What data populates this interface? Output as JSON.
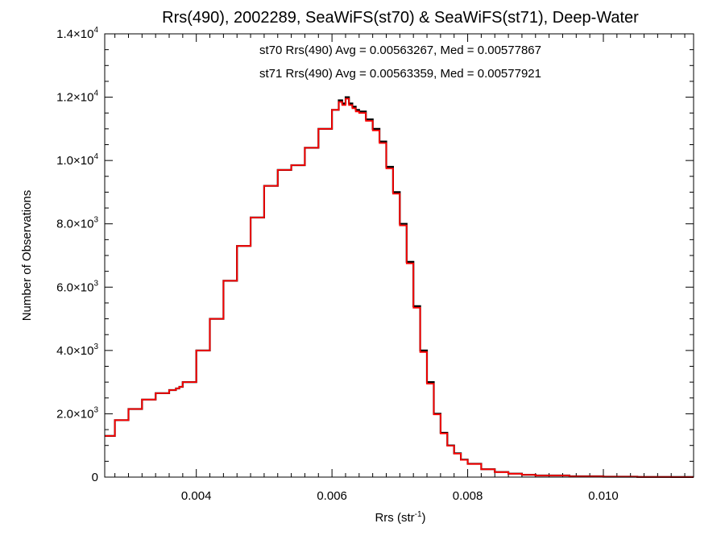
{
  "chart_data": {
    "type": "histogram-step",
    "title": "Rrs(490), 2002289, SeaWiFS(st70) & SeaWiFS(st71), Deep-Water",
    "xlabel": {
      "base": "Rrs (str",
      "sup": "-1",
      "tail": ")"
    },
    "ylabel": "Number of Observations",
    "xlim": [
      0.00265,
      0.01133
    ],
    "ylim": [
      0,
      14000
    ],
    "x_ticks": [
      {
        "value": 0.004,
        "label": "0.004"
      },
      {
        "value": 0.006,
        "label": "0.006"
      },
      {
        "value": 0.008,
        "label": "0.008"
      },
      {
        "value": 0.01,
        "label": "0.010"
      }
    ],
    "y_ticks": [
      {
        "value": 0,
        "mant": "0",
        "exp": ""
      },
      {
        "value": 2000,
        "mant": "2.0×10",
        "exp": "3"
      },
      {
        "value": 4000,
        "mant": "4.0×10",
        "exp": "3"
      },
      {
        "value": 6000,
        "mant": "6.0×10",
        "exp": "3"
      },
      {
        "value": 8000,
        "mant": "8.0×10",
        "exp": "3"
      },
      {
        "value": 10000,
        "mant": "1.0×10",
        "exp": "4"
      },
      {
        "value": 12000,
        "mant": "1.2×10",
        "exp": "4"
      },
      {
        "value": 14000,
        "mant": "1.4×10",
        "exp": "4"
      }
    ],
    "annotations": [
      {
        "text": "st70 Rrs(490) Avg = 0.00563267, Med = 0.00577867",
        "color": "#000000"
      },
      {
        "text": "st71 Rrs(490) Avg = 0.00563359, Med = 0.00577921",
        "color": "#ff0000"
      }
    ],
    "series": [
      {
        "name": "st70",
        "color": "#000000",
        "x": [
          0.00265,
          0.0028,
          0.003,
          0.0032,
          0.0034,
          0.0036,
          0.0037,
          0.00375,
          0.0038,
          0.004,
          0.0042,
          0.0044,
          0.0046,
          0.0048,
          0.005,
          0.0052,
          0.0054,
          0.0056,
          0.0058,
          0.006,
          0.0061,
          0.00615,
          0.0062,
          0.00625,
          0.0063,
          0.00635,
          0.0064,
          0.0065,
          0.0066,
          0.0067,
          0.0068,
          0.0069,
          0.007,
          0.0071,
          0.0072,
          0.0073,
          0.0074,
          0.0075,
          0.0076,
          0.0077,
          0.0078,
          0.0079,
          0.008,
          0.0082,
          0.0084,
          0.0086,
          0.0088,
          0.009,
          0.0095,
          0.01,
          0.0105,
          0.011,
          0.01133
        ],
        "y": [
          1300,
          1800,
          2150,
          2450,
          2650,
          2750,
          2800,
          2850,
          3000,
          4000,
          5000,
          6200,
          7300,
          8200,
          9200,
          9700,
          9850,
          10400,
          11000,
          11600,
          11900,
          11800,
          12000,
          11800,
          11700,
          11600,
          11550,
          11300,
          11000,
          10600,
          9800,
          9000,
          8000,
          6800,
          5400,
          4000,
          3000,
          2000,
          1400,
          1000,
          750,
          550,
          420,
          250,
          160,
          110,
          75,
          50,
          25,
          12,
          6,
          3,
          2
        ]
      },
      {
        "name": "st71",
        "color": "#ff0000",
        "x": [
          0.00265,
          0.0028,
          0.003,
          0.0032,
          0.0034,
          0.0036,
          0.0037,
          0.00375,
          0.0038,
          0.004,
          0.0042,
          0.0044,
          0.0046,
          0.0048,
          0.005,
          0.0052,
          0.0054,
          0.0056,
          0.0058,
          0.006,
          0.0061,
          0.00615,
          0.0062,
          0.00625,
          0.0063,
          0.00635,
          0.0064,
          0.0065,
          0.0066,
          0.0067,
          0.0068,
          0.0069,
          0.007,
          0.0071,
          0.0072,
          0.0073,
          0.0074,
          0.0075,
          0.0076,
          0.0077,
          0.0078,
          0.0079,
          0.008,
          0.0082,
          0.0084,
          0.0086,
          0.0088,
          0.009,
          0.0095,
          0.01,
          0.0105,
          0.011,
          0.01133
        ],
        "y": [
          1300,
          1800,
          2150,
          2450,
          2650,
          2750,
          2800,
          2850,
          3000,
          4000,
          5000,
          6200,
          7300,
          8200,
          9200,
          9700,
          9850,
          10400,
          11000,
          11600,
          11850,
          11750,
          11950,
          11750,
          11650,
          11550,
          11500,
          11250,
          10950,
          10550,
          9750,
          8950,
          7950,
          6750,
          5350,
          3950,
          2950,
          1980,
          1380,
          990,
          740,
          545,
          415,
          248,
          158,
          108,
          74,
          49,
          24,
          12,
          6,
          3,
          2
        ]
      }
    ]
  }
}
